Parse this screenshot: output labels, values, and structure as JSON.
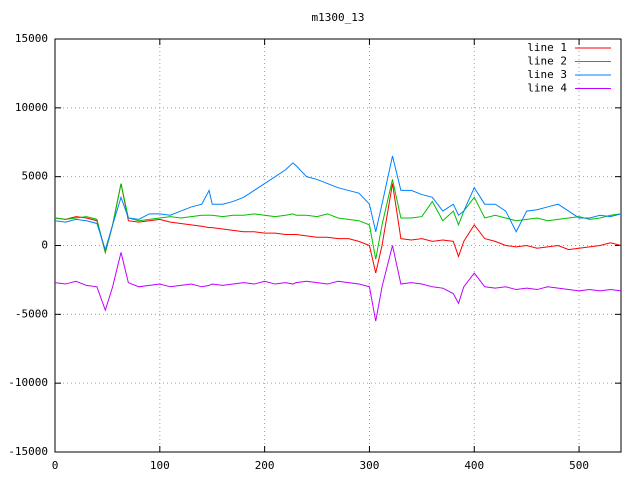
{
  "chart_data": {
    "type": "line",
    "title": "m1300_13",
    "x": [
      0,
      10,
      20,
      30,
      40,
      48,
      55,
      63,
      70,
      80,
      90,
      100,
      110,
      120,
      130,
      140,
      147,
      150,
      160,
      170,
      180,
      190,
      200,
      210,
      220,
      227,
      230,
      240,
      250,
      260,
      270,
      280,
      290,
      300,
      306,
      312,
      322,
      330,
      340,
      350,
      360,
      370,
      380,
      385,
      390,
      400,
      410,
      420,
      430,
      440,
      450,
      460,
      470,
      480,
      490,
      500,
      510,
      520,
      530,
      540
    ],
    "series": [
      {
        "name": "line 1",
        "color": "#ff0000",
        "values": [
          2000,
          1900,
          2100,
          2000,
          1800,
          -500,
          1500,
          4500,
          1800,
          1700,
          1800,
          1900,
          1700,
          1600,
          1500,
          1400,
          1300,
          1300,
          1200,
          1100,
          1000,
          1000,
          900,
          900,
          800,
          800,
          800,
          700,
          600,
          600,
          500,
          500,
          300,
          0,
          -2000,
          0,
          4500,
          500,
          400,
          500,
          300,
          400,
          300,
          -800,
          300,
          1500,
          500,
          300,
          0,
          -100,
          0,
          -200,
          -100,
          0,
          -300,
          -200,
          -100,
          0,
          200,
          0
        ]
      },
      {
        "name": "line 2",
        "color": "#00c000",
        "values": [
          2000,
          1900,
          2000,
          2100,
          1900,
          -500,
          1500,
          4500,
          2000,
          1800,
          1900,
          2000,
          2100,
          2000,
          2100,
          2200,
          2200,
          2200,
          2100,
          2200,
          2200,
          2300,
          2200,
          2100,
          2200,
          2300,
          2200,
          2200,
          2100,
          2300,
          2000,
          1900,
          1800,
          1500,
          -1000,
          1500,
          4800,
          2000,
          2000,
          2100,
          3200,
          1800,
          2500,
          1500,
          2500,
          3500,
          2000,
          2200,
          2000,
          1800,
          1900,
          2000,
          1800,
          1900,
          2000,
          2100,
          1900,
          2000,
          2200,
          2300
        ]
      },
      {
        "name": "line 3",
        "color": "#0080ff",
        "values": [
          1800,
          1700,
          1900,
          1800,
          1600,
          -300,
          1500,
          3500,
          2000,
          1900,
          2300,
          2300,
          2200,
          2500,
          2800,
          3000,
          4000,
          3000,
          3000,
          3200,
          3500,
          4000,
          4500,
          5000,
          5500,
          6000,
          5800,
          5000,
          4800,
          4500,
          4200,
          4000,
          3800,
          3000,
          1000,
          3000,
          6500,
          4000,
          4000,
          3700,
          3500,
          2500,
          3000,
          2200,
          2500,
          4200,
          3000,
          3000,
          2500,
          1000,
          2500,
          2600,
          2800,
          3000,
          2500,
          2000,
          2000,
          2200,
          2100,
          2300
        ]
      },
      {
        "name": "line 4",
        "color": "#c000ff",
        "values": [
          -2700,
          -2800,
          -2600,
          -2900,
          -3000,
          -4700,
          -3000,
          -500,
          -2700,
          -3000,
          -2900,
          -2800,
          -3000,
          -2900,
          -2800,
          -3000,
          -2900,
          -2800,
          -2900,
          -2800,
          -2700,
          -2800,
          -2600,
          -2800,
          -2700,
          -2800,
          -2700,
          -2600,
          -2700,
          -2800,
          -2600,
          -2700,
          -2800,
          -3000,
          -5500,
          -3000,
          0,
          -2800,
          -2700,
          -2800,
          -3000,
          -3100,
          -3500,
          -4200,
          -3000,
          -2000,
          -3000,
          -3100,
          -3000,
          -3200,
          -3100,
          -3200,
          -3000,
          -3100,
          -3200,
          -3300,
          -3200,
          -3300,
          -3200,
          -3300
        ]
      }
    ],
    "xlim": [
      0,
      540
    ],
    "xticks": [
      0,
      100,
      200,
      300,
      400,
      500
    ],
    "ylim": [
      -15000,
      15000
    ],
    "yticks": [
      -15000,
      -10000,
      -5000,
      0,
      5000,
      10000,
      15000
    ],
    "grid": true,
    "legend": "top-right"
  }
}
